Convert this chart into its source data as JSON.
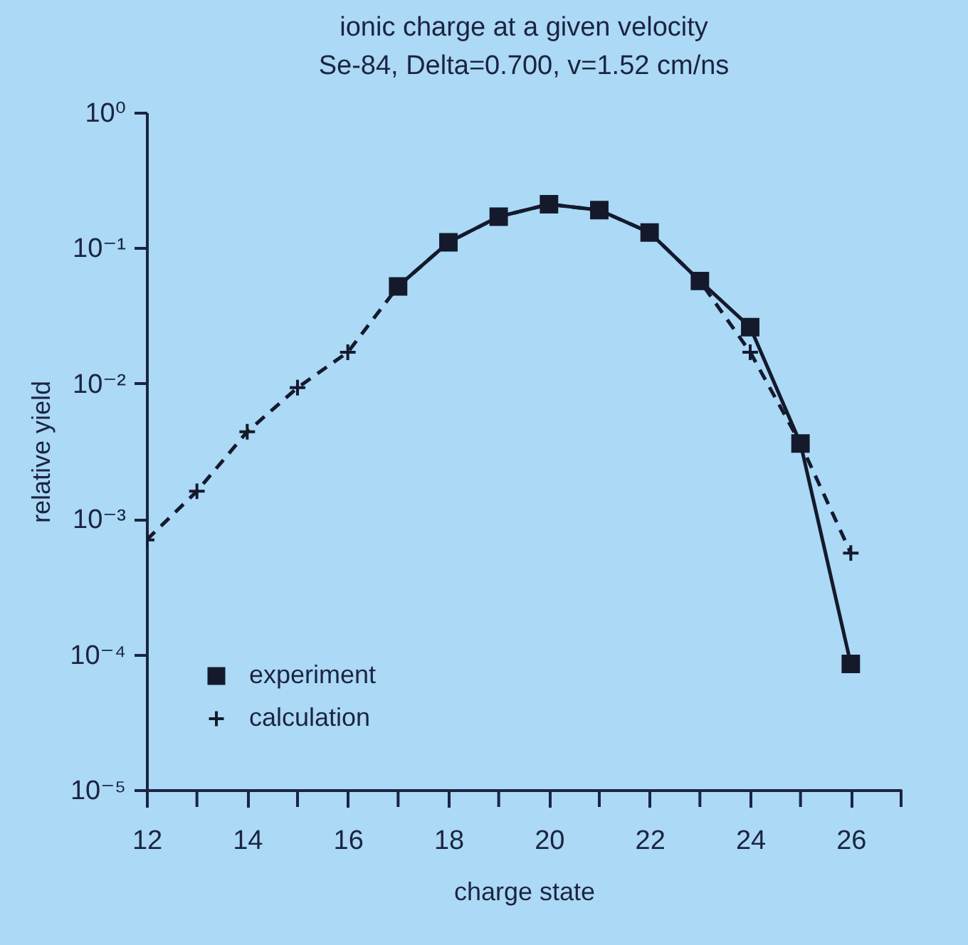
{
  "chart_data": {
    "type": "line",
    "title": "ionic charge at a given velocity",
    "subtitle": "Se-84, Delta=0.700, v=1.52 cm/ns",
    "xlabel": "charge state",
    "ylabel": "relative yield",
    "log": "y",
    "legend": "bottom left",
    "grid": false,
    "xlim": [
      12,
      27
    ],
    "xticks": [
      12,
      {
        "value": 13,
        "label": null
      },
      14,
      {
        "value": 15,
        "label": null
      },
      16,
      {
        "value": 17,
        "label": null
      },
      18,
      {
        "value": 19,
        "label": null
      },
      20,
      {
        "value": 21,
        "label": null
      },
      22,
      {
        "value": 23,
        "label": null
      },
      24,
      {
        "value": 25,
        "label": null
      },
      26,
      {
        "value": 27,
        "label": null
      }
    ],
    "ylim": [
      1e-05,
      1
    ],
    "yticks": [
      {
        "value": 1e-05,
        "label": "10⁻⁵"
      },
      {
        "value": 0.0001,
        "label": "10⁻⁴"
      },
      {
        "value": 0.001,
        "label": "10⁻³"
      },
      {
        "value": 0.01,
        "label": "10⁻²"
      },
      {
        "value": 0.1,
        "label": "10⁻¹"
      },
      {
        "value": 1,
        "label": "10⁰"
      }
    ],
    "series": [
      {
        "name": "experiment",
        "color": "#141a2c",
        "marker": "square",
        "line_style": "solid",
        "x": [
          17,
          18,
          19,
          20,
          21,
          22,
          23,
          24,
          25,
          26
        ],
        "values": [
          0.052,
          0.11,
          0.17,
          0.21,
          0.19,
          0.13,
          0.057,
          0.026,
          0.0036,
          8.5e-05
        ]
      },
      {
        "name": "calculation",
        "color": "#141a2c",
        "marker": "cross",
        "line_style": "dashed",
        "x": [
          12,
          13,
          14,
          15,
          16,
          17,
          18,
          19,
          20,
          21,
          22,
          23,
          24,
          25,
          26
        ],
        "values": [
          0.0007,
          0.0016,
          0.0044,
          0.0093,
          0.017,
          0.052,
          0.11,
          0.17,
          0.21,
          0.19,
          0.13,
          0.057,
          0.017,
          0.0036,
          0.00056
        ]
      }
    ]
  }
}
